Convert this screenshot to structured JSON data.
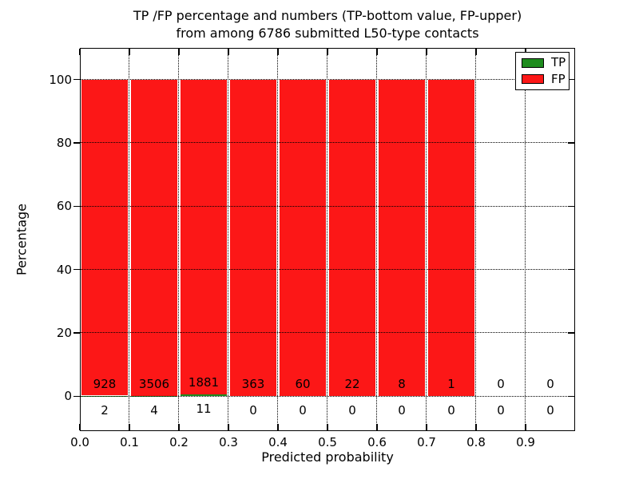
{
  "title": {
    "line1": "TP /FP percentage and numbers (TP-bottom value, FP-upper)",
    "line2": "from among 6786 submitted L50-type contacts"
  },
  "chart_data": {
    "type": "bar",
    "stacked": true,
    "normalized": "percent",
    "title": "TP /FP percentage and numbers (TP-bottom value, FP-upper) from among 6786 submitted L50-type contacts",
    "xlabel": "Predicted probability",
    "ylabel": "Percentage",
    "total_contacts": 6786,
    "xlim": [
      0.0,
      1.0
    ],
    "ylim": [
      -11,
      110
    ],
    "bin_width": 0.1,
    "bin_starts": [
      0.0,
      0.1,
      0.2,
      0.3,
      0.4,
      0.5,
      0.6,
      0.7,
      0.8,
      0.9
    ],
    "xtick_labels": [
      "0.0",
      "0.1",
      "0.2",
      "0.3",
      "0.4",
      "0.5",
      "0.6",
      "0.7",
      "0.8",
      "0.9"
    ],
    "ytick_values": [
      0,
      20,
      40,
      60,
      80,
      100
    ],
    "series": [
      {
        "name": "TP",
        "color": "#1e8c1e",
        "counts": [
          2,
          4,
          11,
          0,
          0,
          0,
          0,
          0,
          0,
          0
        ]
      },
      {
        "name": "FP",
        "color": "#fc1717",
        "counts": [
          928,
          3506,
          1881,
          363,
          60,
          22,
          8,
          1,
          0,
          0
        ]
      }
    ],
    "annotations_note": "FP counts printed above the zero line, TP counts printed below it",
    "legend": {
      "position": "upper right",
      "entries": [
        "TP",
        "FP"
      ]
    },
    "grid": {
      "style": "dotted",
      "color": "#000000"
    },
    "background": "#ffffff"
  }
}
